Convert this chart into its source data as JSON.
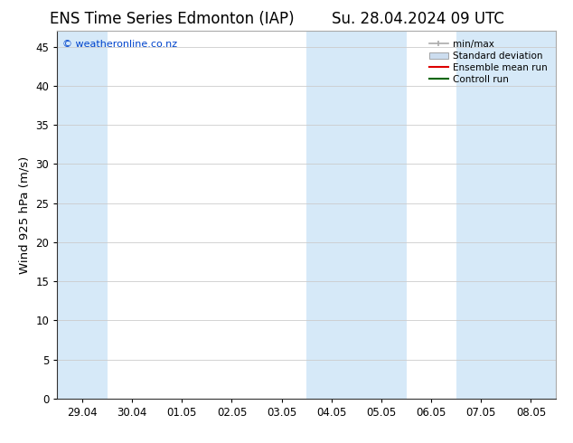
{
  "title_left": "ENS Time Series Edmonton (IAP)",
  "title_right": "Su. 28.04.2024 09 UTC",
  "ylabel": "Wind 925 hPa (m/s)",
  "watermark": "© weatheronline.co.nz",
  "ylim": [
    0,
    47
  ],
  "yticks": [
    0,
    5,
    10,
    15,
    20,
    25,
    30,
    35,
    40,
    45
  ],
  "xtick_labels": [
    "29.04",
    "30.04",
    "01.05",
    "02.05",
    "03.05",
    "04.05",
    "05.05",
    "06.05",
    "07.05",
    "08.05"
  ],
  "xtick_positions": [
    0,
    1,
    2,
    3,
    4,
    5,
    6,
    7,
    8,
    9
  ],
  "xlim": [
    -0.5,
    9.5
  ],
  "shaded_bands": [
    {
      "x_start": -0.5,
      "x_end": 0.5,
      "color": "#d6e9f8"
    },
    {
      "x_start": 4.5,
      "x_end": 5.5,
      "color": "#d6e9f8"
    },
    {
      "x_start": 5.5,
      "x_end": 6.5,
      "color": "#d6e9f8"
    },
    {
      "x_start": 7.5,
      "x_end": 8.5,
      "color": "#d6e9f8"
    },
    {
      "x_start": 8.5,
      "x_end": 9.5,
      "color": "#d6e9f8"
    }
  ],
  "legend_items": [
    {
      "label": "min/max",
      "color": "#aaaaaa",
      "type": "errorbar"
    },
    {
      "label": "Standard deviation",
      "color": "#ccddef",
      "type": "patch"
    },
    {
      "label": "Ensemble mean run",
      "color": "#dd0000",
      "type": "line"
    },
    {
      "label": "Controll run",
      "color": "#006600",
      "type": "line"
    }
  ],
  "bg_color": "#ffffff",
  "plot_bg_color": "#ffffff",
  "grid_color": "#cccccc",
  "title_fontsize": 12,
  "tick_fontsize": 8.5,
  "ylabel_fontsize": 9.5,
  "watermark_color": "#0044cc",
  "watermark_fontsize": 8
}
